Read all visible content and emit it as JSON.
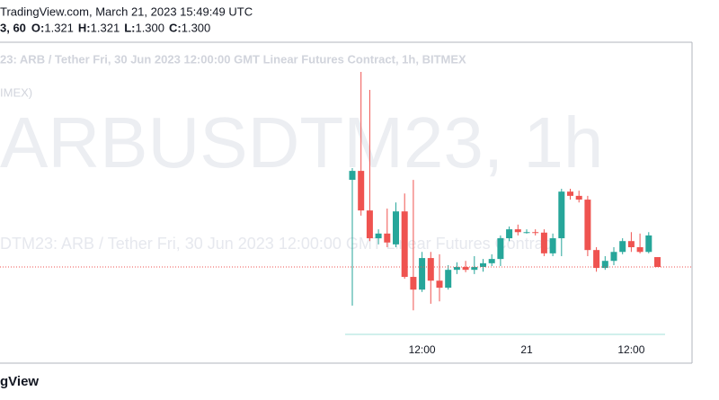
{
  "header": {
    "source": "TradingView.com, March 21, 2023 15:49:49 UTC",
    "symbol": "3, 60",
    "ohlc": [
      {
        "label": "O:",
        "value": "1.321"
      },
      {
        "label": "H:",
        "value": "1.321"
      },
      {
        "label": "L:",
        "value": "1.300"
      },
      {
        "label": "C:",
        "value": "1.300"
      }
    ]
  },
  "footer": {
    "logo": "gView"
  },
  "chart_data": {
    "type": "candlestick",
    "title": "23: ARB / Tether Fri, 30 Jun 2023 12:00:00 GMT Linear Futures Contract, 1h, BITMEX",
    "subtitle": "IMEX)",
    "watermark": "ARBUSDTM23, 1h",
    "watermark_subtitle": "DTM23: ARB / Tether Fri, 30 Jun 2023 12:00:00 GMT Linear Futures Contract",
    "categories": [
      null,
      null,
      null,
      null,
      null,
      null,
      null,
      null,
      "12:00",
      null,
      null,
      null,
      null,
      null,
      null,
      null,
      null,
      null,
      null,
      null,
      "21",
      null,
      null,
      null,
      null,
      null,
      null,
      null,
      null,
      null,
      null,
      null,
      "12:00",
      null,
      null,
      null
    ],
    "open": [
      1.485,
      1.504,
      1.42,
      1.361,
      1.371,
      1.348,
      1.418,
      1.279,
      1.252,
      1.319,
      1.271,
      1.256,
      1.294,
      1.3,
      1.294,
      1.3,
      1.308,
      1.317,
      1.361,
      1.38,
      1.374,
      1.374,
      1.373,
      1.329,
      1.361,
      1.46,
      1.451,
      1.443,
      1.336,
      1.298,
      1.313,
      1.332,
      1.355,
      1.342,
      1.332,
      1.321
    ],
    "high": [
      1.51,
      1.714,
      1.676,
      1.38,
      1.424,
      1.437,
      1.456,
      1.485,
      1.332,
      1.332,
      1.327,
      1.304,
      1.31,
      1.313,
      1.323,
      1.317,
      1.327,
      1.367,
      1.386,
      1.39,
      1.38,
      1.38,
      1.38,
      1.371,
      1.466,
      1.466,
      1.462,
      1.451,
      1.342,
      1.323,
      1.342,
      1.361,
      1.374,
      1.371,
      1.374,
      1.321
    ],
    "low": [
      1.218,
      1.409,
      1.355,
      1.348,
      1.342,
      1.342,
      1.275,
      1.208,
      1.247,
      1.222,
      1.227,
      1.252,
      1.285,
      1.289,
      1.285,
      1.29,
      1.302,
      1.302,
      1.355,
      1.367,
      1.371,
      1.367,
      1.323,
      1.323,
      1.323,
      1.443,
      1.437,
      1.323,
      1.29,
      1.294,
      1.304,
      1.327,
      1.332,
      1.329,
      1.329,
      1.3
    ],
    "close": [
      1.504,
      1.42,
      1.361,
      1.371,
      1.352,
      1.418,
      1.279,
      1.252,
      1.319,
      1.271,
      1.256,
      1.294,
      1.3,
      1.294,
      1.3,
      1.308,
      1.317,
      1.361,
      1.38,
      1.374,
      1.374,
      1.373,
      1.329,
      1.361,
      1.46,
      1.451,
      1.443,
      1.336,
      1.298,
      1.313,
      1.332,
      1.355,
      1.342,
      1.332,
      1.367,
      1.3
    ],
    "ylim": [
      1.157,
      1.777
    ],
    "up_color": "#26a69a",
    "down_color": "#ef5350",
    "price_line": true
  }
}
